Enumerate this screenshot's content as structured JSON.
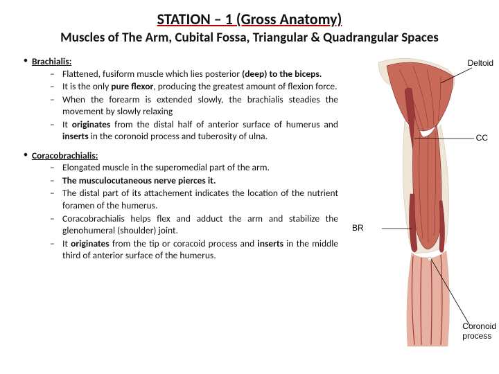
{
  "title": "STATION – 1 (Gross Anatomy)",
  "subtitle": "Muscles of The Arm, Cubital Fossa, Triangular & Quadrangular Spaces",
  "muscles": [
    {
      "name": "Brachialis:",
      "points_html": [
        "Flattened, fusiform muscle which lies posterior <b>(deep) to the biceps.</b>",
        "It is the only <b>pure flexor</b>, producing the greatest amount of flexion force.",
        "When the forearm is extended slowly, the brachialis steadies the movement by slowly relaxing",
        "It <b>originates</b> from the distal half of anterior surface of humerus and <b>inserts</b> in the coronoid process and tuberosity of ulna."
      ]
    },
    {
      "name": "Coracobrachialis:",
      "points_html": [
        "Elongated muscle in the superomedial part of the arm.",
        "<b>The musculocutaneous nerve pierces it.</b>",
        "The distal part of its attachement indicates the location of the nutrient foramen of the humerus.",
        "Coracobrachialis helps flex and adduct the arm and stabilize the glenohumeral (shoulder) joint.",
        "It <b>originates</b> from the tip or coracoid process and <b>inserts</b> in the middle third of anterior surface of the humerus."
      ]
    }
  ],
  "diagram": {
    "labels": {
      "deltoid": "Deltoid",
      "cc": "CC",
      "br": "BR",
      "coronoid": "Coronoid\nprocess"
    },
    "colors": {
      "muscle_dark": "#9a3a3a",
      "muscle_mid": "#c86a5a",
      "muscle_light": "#e8b0a0",
      "skin_light": "#f0e6d8",
      "skin_shadow": "#d8cab4",
      "line": "#000000",
      "fiber": "#7a2a2a"
    }
  }
}
